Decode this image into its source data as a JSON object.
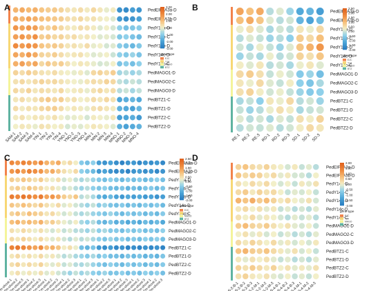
{
  "figure": {
    "genes": [
      "PedEIF4A3a-D",
      "PedEIF4A3b-D",
      "PedY14a-D",
      "PedY14b-C",
      "PedY14b-D",
      "PedY14c-D",
      "PedY14c-C",
      "PedMAGO1-D",
      "PedMAGO2-C",
      "PedMAGO3-D",
      "PedBTZ1-C",
      "PedBTZ1-D",
      "PedBTZ2-C",
      "PedBTZ2-D"
    ],
    "gene_type_colors": [
      "#f2834b",
      "#f7d774",
      "#f4f49a",
      "#5fb3a1"
    ],
    "gene_type_groups": [
      2,
      5,
      3,
      4
    ],
    "gene_type_legend_title": "gene-type",
    "gene_type_labels": [
      "EJC",
      "Y14",
      "MAGO",
      "BTZ"
    ],
    "colormap": [
      "#2b7fc2",
      "#4ea6d8",
      "#8fd0ea",
      "#f2efc9",
      "#f6c07b",
      "#ee8b3f",
      "#e0621d"
    ]
  },
  "chart_data": [
    {
      "panel": "A",
      "type": "heatmap",
      "categories": [
        "SAM-1",
        "SAM-2",
        "SAM-3",
        "SAM-4",
        "YIN-1",
        "YIN-2",
        "YIN-3",
        "YIN-4",
        "YNO-1",
        "YNO-2",
        "YNO-3",
        "YNO-4",
        "MIN-1",
        "MIN-2",
        "MIN-3",
        "MIN-4",
        "MNO-1",
        "MNO-2",
        "MNO-3",
        "MNO-4"
      ],
      "legend_ticks": [
        "3.00",
        "2.00",
        "1.00",
        "0.00",
        "-1.00",
        "-2.00",
        "-3.00"
      ],
      "scale_range": [
        -3,
        3
      ],
      "values": [
        [
          1.2,
          1.4,
          1.1,
          1.3,
          0.9,
          0.7,
          0.8,
          0.6,
          0.3,
          0.2,
          0.4,
          0.1,
          0.5,
          0.2,
          -0.1,
          0.1,
          -2.5,
          -2.7,
          -2.2,
          -2.4
        ],
        [
          1.4,
          1.2,
          1.5,
          1.3,
          1.0,
          0.9,
          0.8,
          0.7,
          0.4,
          0.3,
          0.5,
          0.2,
          0.3,
          0.1,
          0.0,
          -0.2,
          -2.3,
          -2.6,
          -2.4,
          -2.1
        ],
        [
          1.8,
          1.5,
          1.7,
          1.6,
          0.8,
          0.6,
          0.9,
          0.5,
          0.2,
          0.1,
          0.4,
          0.3,
          0.1,
          -0.2,
          0.0,
          -0.3,
          -1.0,
          -1.4,
          -1.2,
          -1.1
        ],
        [
          1.6,
          1.8,
          1.5,
          1.9,
          0.7,
          0.8,
          0.5,
          0.6,
          0.3,
          0.4,
          0.1,
          0.2,
          0.0,
          -0.2,
          -0.1,
          -0.3,
          -1.2,
          -1.0,
          -1.3,
          -1.5
        ],
        [
          2.0,
          1.7,
          1.9,
          1.8,
          0.9,
          0.7,
          0.8,
          0.6,
          0.2,
          0.3,
          0.1,
          0.4,
          -0.1,
          0.0,
          -0.3,
          -0.2,
          -1.1,
          -1.3,
          -1.6,
          -1.2
        ],
        [
          1.5,
          1.3,
          1.7,
          1.4,
          0.6,
          0.5,
          0.7,
          0.4,
          0.1,
          0.2,
          0.3,
          0.0,
          -0.2,
          -0.1,
          0.0,
          -0.4,
          -1.0,
          -1.2,
          -0.9,
          -1.3
        ],
        [
          1.3,
          1.6,
          1.2,
          1.5,
          0.5,
          0.8,
          0.6,
          0.7,
          0.3,
          0.0,
          0.2,
          0.1,
          -0.1,
          -0.3,
          -0.2,
          0.0,
          -1.3,
          -1.1,
          -1.4,
          -1.0
        ],
        [
          0.6,
          0.4,
          0.7,
          0.5,
          0.3,
          0.2,
          0.4,
          0.1,
          0.0,
          -0.1,
          0.1,
          -0.2,
          0.5,
          0.6,
          0.4,
          0.7,
          -0.8,
          -0.6,
          -0.9,
          -0.7
        ],
        [
          0.3,
          0.5,
          0.2,
          0.4,
          0.6,
          0.4,
          0.5,
          0.3,
          0.1,
          0.0,
          -0.1,
          0.2,
          0.4,
          0.3,
          0.6,
          0.5,
          -0.5,
          -0.7,
          -0.4,
          -0.6
        ],
        [
          0.5,
          0.3,
          0.6,
          0.2,
          0.4,
          0.3,
          0.2,
          0.5,
          0.0,
          0.1,
          0.2,
          -0.1,
          0.3,
          0.5,
          0.2,
          0.4,
          -0.6,
          -0.4,
          -0.8,
          -0.5
        ],
        [
          0.2,
          0.4,
          0.1,
          0.3,
          0.6,
          0.8,
          0.5,
          0.7,
          0.2,
          0.3,
          0.0,
          0.1,
          0.4,
          0.2,
          0.5,
          0.3,
          -2.0,
          -1.8,
          -1.6,
          -1.9
        ],
        [
          0.4,
          0.1,
          0.3,
          0.2,
          0.5,
          0.6,
          0.7,
          0.4,
          0.0,
          0.2,
          0.1,
          -0.1,
          0.3,
          0.4,
          0.2,
          0.1,
          -1.7,
          -1.9,
          -2.1,
          -1.6
        ],
        [
          0.1,
          0.3,
          0.0,
          0.2,
          0.2,
          0.1,
          0.3,
          0.0,
          -0.2,
          -0.1,
          0.0,
          -0.3,
          0.1,
          0.0,
          -0.1,
          0.2,
          -2.2,
          -2.0,
          -1.8,
          -2.3
        ],
        [
          0.0,
          0.2,
          0.1,
          -0.1,
          0.3,
          0.2,
          0.0,
          0.1,
          -0.3,
          -0.1,
          -0.2,
          0.0,
          0.2,
          0.1,
          0.0,
          -0.2,
          -1.8,
          -2.1,
          -1.9,
          -1.7
        ]
      ]
    },
    {
      "panel": "B",
      "type": "heatmap",
      "categories": [
        "RE-1",
        "RE-2",
        "RE-3",
        "RD-1",
        "RD-2",
        "RD-3",
        "SD-1",
        "SD-2",
        "SD-3"
      ],
      "legend_ticks": [
        "2.50",
        "2.00",
        "1.50",
        "1.00",
        "0.50",
        "0.00",
        "-0.50",
        "-1.00",
        "-1.50",
        "-2.00"
      ],
      "scale_range": [
        -2,
        2.5
      ],
      "values": [
        [
          1.4,
          1.0,
          1.3,
          -0.2,
          0.1,
          -0.4,
          -1.2,
          -1.0,
          -1.4
        ],
        [
          1.0,
          1.3,
          0.9,
          0.1,
          -0.2,
          0.0,
          -1.0,
          -1.3,
          -0.9
        ],
        [
          0.2,
          0.5,
          0.1,
          -0.3,
          0.0,
          -0.2,
          0.4,
          0.2,
          0.6
        ],
        [
          -0.2,
          0.1,
          -0.1,
          -0.4,
          -0.2,
          -0.5,
          0.8,
          0.6,
          1.0
        ],
        [
          0.0,
          -0.3,
          0.2,
          -0.1,
          -0.4,
          0.1,
          0.9,
          1.2,
          1.6
        ],
        [
          -0.4,
          -0.1,
          -0.3,
          0.2,
          -0.2,
          0.0,
          0.7,
          0.5,
          0.9
        ],
        [
          0.3,
          0.1,
          0.4,
          -0.2,
          0.0,
          -0.3,
          0.2,
          0.4,
          0.1
        ],
        [
          0.6,
          0.8,
          0.5,
          -0.1,
          0.2,
          0.0,
          -0.6,
          -0.4,
          -0.8
        ],
        [
          0.4,
          0.2,
          0.6,
          0.1,
          -0.1,
          0.3,
          -0.5,
          -0.7,
          -0.3
        ],
        [
          0.5,
          0.7,
          0.3,
          0.0,
          0.2,
          -0.1,
          -0.4,
          -0.6,
          -0.5
        ],
        [
          -0.3,
          -0.1,
          -0.5,
          0.4,
          0.2,
          0.6,
          -0.2,
          0.0,
          -0.4
        ],
        [
          -0.1,
          -0.4,
          -0.2,
          0.2,
          0.5,
          0.3,
          -0.3,
          -0.1,
          0.0
        ],
        [
          0.1,
          -0.2,
          0.0,
          -0.3,
          0.1,
          -0.1,
          0.5,
          0.3,
          0.7
        ],
        [
          -0.2,
          0.0,
          -0.1,
          0.1,
          -0.2,
          0.0,
          0.3,
          0.6,
          0.4
        ]
      ]
    },
    {
      "panel": "C",
      "type": "heatmap",
      "categories": [
        "0.2m-shoot-1",
        "0.2m-shoot-2",
        "0.2m-shoot-3",
        "0.5m-shoot-1",
        "0.5m-shoot-2",
        "0.5m-shoot-3",
        "1m-shoot-1",
        "1m-shoot-2",
        "1m-shoot-3",
        "2m-shoot-1",
        "2m-shoot-2",
        "2m-shoot-3",
        "3m-shoot-1",
        "3m-shoot-2",
        "3m-shoot-3",
        "4m-shoot-1",
        "4m-shoot-2",
        "4m-shoot-3",
        "5m-shoot-1",
        "5m-shoot-2",
        "5m-shoot-3",
        "6m-shoot-1",
        "6m-shoot-2",
        "6m-shoot-3",
        "7m-shoot-1",
        "7m-shoot-2",
        "7m-shoot-3"
      ],
      "legend_ticks": [
        "2.50",
        "2.00",
        "1.50",
        "1.00",
        "0.50",
        "0.00",
        "-0.50",
        "-1.00",
        "-1.50",
        "-2.00"
      ],
      "scale_range": [
        -2,
        2.5
      ],
      "values": [
        [
          1.8,
          1.6,
          1.9,
          1.7,
          1.5,
          1.8,
          1.2,
          1.0,
          1.3,
          0.4,
          0.6,
          0.3,
          -0.6,
          -0.8,
          -0.5,
          -1.4,
          -1.6,
          -1.3,
          -1.7,
          -1.9,
          -1.6,
          -1.5,
          -1.8,
          -1.6,
          -1.7,
          -1.5,
          -1.8
        ],
        [
          1.6,
          1.8,
          1.5,
          1.9,
          1.7,
          1.6,
          1.1,
          1.3,
          0.9,
          0.5,
          0.3,
          0.6,
          -0.5,
          -0.7,
          -0.9,
          -1.5,
          -1.3,
          -1.6,
          -1.8,
          -1.6,
          -1.9,
          -1.6,
          -1.4,
          -1.7,
          -1.5,
          -1.8,
          -1.6
        ],
        [
          0.8,
          0.6,
          0.9,
          0.7,
          0.5,
          0.8,
          0.4,
          0.2,
          0.5,
          0.0,
          0.2,
          -0.1,
          -0.3,
          -0.1,
          -0.4,
          -0.6,
          -0.8,
          -0.5,
          -0.7,
          -0.9,
          -0.6,
          -0.8,
          -0.6,
          -0.9,
          -0.7,
          -0.5,
          -0.8
        ],
        [
          0.6,
          0.8,
          0.5,
          0.9,
          0.7,
          0.6,
          0.3,
          0.5,
          0.2,
          -0.1,
          0.1,
          -0.2,
          -0.4,
          -0.2,
          -0.5,
          -0.7,
          -0.5,
          -0.8,
          -0.9,
          -0.7,
          -1.0,
          -0.8,
          -1.0,
          -0.7,
          -0.6,
          -0.9,
          -0.7
        ],
        [
          2.0,
          1.8,
          2.1,
          1.9,
          1.7,
          2.0,
          1.4,
          1.6,
          1.3,
          0.8,
          0.6,
          0.9,
          -0.2,
          0.0,
          -0.3,
          -1.0,
          -1.2,
          -0.9,
          -1.3,
          -1.5,
          -1.2,
          -1.4,
          -1.2,
          -1.5,
          -1.3,
          -1.6,
          -1.4
        ],
        [
          0.9,
          0.7,
          1.0,
          0.8,
          0.6,
          0.9,
          0.5,
          0.3,
          0.6,
          0.1,
          0.3,
          0.0,
          -0.2,
          -0.4,
          -0.1,
          -0.6,
          -0.4,
          -0.7,
          -0.8,
          -0.6,
          -0.9,
          -0.7,
          -0.9,
          -0.6,
          -0.8,
          -0.6,
          -0.9
        ],
        [
          0.7,
          0.9,
          0.6,
          1.0,
          0.8,
          0.7,
          0.4,
          0.6,
          0.3,
          0.0,
          0.2,
          -0.1,
          -0.3,
          -0.1,
          -0.4,
          -0.5,
          -0.7,
          -0.4,
          -0.7,
          -0.9,
          -0.6,
          -0.8,
          -0.6,
          -0.9,
          -0.7,
          -0.9,
          -0.6
        ],
        [
          1.0,
          1.2,
          0.9,
          1.1,
          0.9,
          1.2,
          0.6,
          0.8,
          0.5,
          0.2,
          0.0,
          0.3,
          -0.3,
          -0.5,
          -0.2,
          -0.8,
          -1.0,
          -0.7,
          -1.1,
          -0.9,
          -1.2,
          -1.0,
          -1.2,
          -0.9,
          -1.1,
          -0.9,
          -1.2
        ],
        [
          0.5,
          0.3,
          0.6,
          0.4,
          0.2,
          0.5,
          0.2,
          0.0,
          0.3,
          -0.1,
          0.1,
          -0.2,
          -0.2,
          -0.4,
          -0.1,
          -0.5,
          -0.3,
          -0.6,
          -0.6,
          -0.8,
          -0.5,
          -0.7,
          -0.5,
          -0.8,
          -0.6,
          -0.8,
          -0.5
        ],
        [
          0.6,
          0.4,
          0.7,
          0.5,
          0.3,
          0.6,
          0.3,
          0.1,
          0.4,
          0.0,
          -0.2,
          0.1,
          -0.2,
          0.0,
          -0.3,
          -0.5,
          -0.7,
          -0.4,
          -0.7,
          -0.5,
          -0.8,
          -0.6,
          -0.8,
          -0.5,
          -0.7,
          -0.5,
          -0.8
        ],
        [
          1.9,
          2.1,
          1.8,
          1.6,
          1.4,
          1.7,
          1.0,
          1.2,
          0.9,
          0.3,
          0.5,
          0.2,
          -0.8,
          -1.0,
          -0.7,
          -1.5,
          -1.7,
          -1.4,
          -1.8,
          -1.6,
          -1.9,
          -1.7,
          -1.9,
          -1.6,
          -1.8,
          -1.6,
          -1.9
        ],
        [
          0.4,
          0.6,
          0.3,
          0.5,
          0.3,
          0.6,
          0.2,
          0.4,
          0.1,
          -0.2,
          0.0,
          -0.3,
          -0.4,
          -0.6,
          -0.3,
          -0.7,
          -0.5,
          -0.8,
          -0.8,
          -1.0,
          -0.7,
          -0.9,
          -0.7,
          -1.0,
          -0.8,
          -1.0,
          -0.7
        ],
        [
          0.5,
          0.7,
          0.4,
          0.6,
          0.4,
          0.7,
          0.3,
          0.1,
          0.4,
          -0.1,
          0.1,
          -0.2,
          -0.3,
          -0.1,
          -0.4,
          -0.6,
          -0.8,
          -0.5,
          -0.7,
          -0.9,
          -0.6,
          -0.8,
          -0.6,
          -0.9,
          -0.7,
          -0.9,
          -0.6
        ],
        [
          0.3,
          0.5,
          0.2,
          0.4,
          0.2,
          0.5,
          0.1,
          0.3,
          0.0,
          -0.2,
          -0.4,
          -0.1,
          -0.4,
          -0.2,
          -0.5,
          -0.6,
          -0.4,
          -0.7,
          -0.7,
          -0.5,
          -0.8,
          -0.6,
          -0.8,
          -0.5,
          -0.7,
          -0.5,
          -0.8
        ]
      ]
    },
    {
      "panel": "D",
      "type": "heatmap",
      "categories": [
        "S-2-B-1",
        "S-2-B-2",
        "S-2-B-3",
        "S-2-M-1",
        "S-2-M-2",
        "S-2-M-3",
        "S-4-B-1",
        "S-4-B-2",
        "S-4-B-3",
        "S-4-M-1",
        "S-4-M-2",
        "S-4-M-3"
      ],
      "legend_ticks": [
        "2.00",
        "1.50",
        "1.00",
        "0.50",
        "0.00",
        "-0.50",
        "-1.00",
        "-1.50",
        "-2.00"
      ],
      "scale_range": [
        -2,
        2
      ],
      "values": [
        [
          0.4,
          0.6,
          0.3,
          0.2,
          0.4,
          0.1,
          0.0,
          -0.2,
          0.1,
          -0.3,
          -0.1,
          -0.4
        ],
        [
          0.6,
          0.3,
          0.5,
          0.4,
          0.1,
          0.3,
          -0.1,
          0.1,
          -0.2,
          -0.2,
          -0.4,
          0.0
        ],
        [
          0.2,
          0.0,
          0.3,
          0.1,
          0.3,
          0.0,
          -0.2,
          0.0,
          -0.3,
          0.1,
          -0.1,
          0.2
        ],
        [
          0.3,
          0.5,
          0.1,
          0.4,
          0.2,
          0.3,
          0.0,
          -0.3,
          -0.1,
          -0.2,
          0.0,
          -0.3
        ],
        [
          0.8,
          0.6,
          0.9,
          0.5,
          0.7,
          0.4,
          0.1,
          0.3,
          0.0,
          -0.1,
          0.2,
          -0.2
        ],
        [
          0.1,
          0.3,
          0.0,
          0.2,
          -0.1,
          0.1,
          -0.3,
          -0.1,
          -0.4,
          -0.2,
          -0.4,
          -0.1
        ],
        [
          0.2,
          0.0,
          0.3,
          -0.1,
          0.1,
          0.0,
          -0.2,
          -0.4,
          -0.1,
          -0.3,
          -0.1,
          -0.4
        ],
        [
          0.5,
          0.7,
          0.4,
          0.3,
          0.5,
          0.2,
          0.0,
          0.2,
          -0.1,
          -0.2,
          0.0,
          -0.3
        ],
        [
          0.0,
          0.2,
          -0.1,
          0.1,
          -0.2,
          0.0,
          -0.3,
          -0.1,
          -0.4,
          -0.2,
          -0.4,
          -0.1
        ],
        [
          0.3,
          0.1,
          0.4,
          0.2,
          0.0,
          0.3,
          -0.1,
          0.1,
          -0.2,
          0.0,
          -0.2,
          0.1
        ],
        [
          0.6,
          0.8,
          0.5,
          0.4,
          0.6,
          0.3,
          0.1,
          -0.1,
          0.2,
          -0.2,
          0.0,
          -0.3
        ],
        [
          0.1,
          -0.1,
          0.2,
          0.0,
          0.2,
          -0.1,
          -0.3,
          -0.1,
          -0.4,
          -0.2,
          -0.4,
          -0.1
        ],
        [
          0.4,
          0.2,
          0.5,
          0.3,
          0.1,
          0.4,
          0.0,
          0.2,
          -0.1,
          0.1,
          -0.1,
          0.2
        ],
        [
          0.2,
          0.4,
          0.1,
          0.0,
          0.2,
          -0.1,
          -0.2,
          0.0,
          -0.3,
          -0.1,
          -0.3,
          0.0
        ]
      ]
    }
  ]
}
